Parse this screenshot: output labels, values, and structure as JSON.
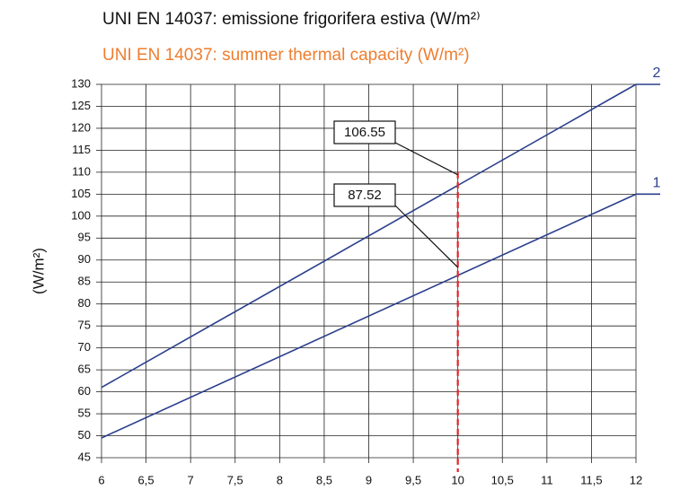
{
  "chart_data": {
    "type": "line",
    "title": "UNI EN 14037: emissione frigorifera estiva (W/m²⁾",
    "subtitle": "UNI EN 14037: summer thermal capacity (W/m²)",
    "y_label": "(W/m²)",
    "series": [
      {
        "name": "1",
        "color": "#2b3f8c",
        "x": [
          6,
          12
        ],
        "values": [
          49.5,
          105
        ]
      },
      {
        "name": "2",
        "color": "#2b3f8c",
        "x": [
          6,
          12
        ],
        "values": [
          61,
          130
        ]
      }
    ],
    "xlim": [
      6,
      12
    ],
    "xticks": [
      6,
      {
        "value": 6.5,
        "label": "6,5"
      },
      7,
      {
        "value": 7.5,
        "label": "7,5"
      },
      8,
      {
        "value": 8.5,
        "label": "8,5"
      },
      9,
      {
        "value": 9.5,
        "label": "9,5"
      },
      10,
      {
        "value": 10.5,
        "label": "10,5"
      },
      11,
      {
        "value": 11.5,
        "label": "11,5"
      },
      12
    ],
    "ylim": [
      45,
      130
    ],
    "yticks": [
      45,
      50,
      55,
      60,
      65,
      70,
      75,
      80,
      85,
      90,
      95,
      100,
      105,
      110,
      115,
      120,
      125,
      130
    ],
    "grid": true,
    "vline": {
      "x": 10,
      "ymax": 110,
      "color": "#e0262b"
    },
    "annotations": [
      {
        "x": 10,
        "y": 106.55
      },
      {
        "x": 10,
        "y": 87.52
      }
    ]
  }
}
